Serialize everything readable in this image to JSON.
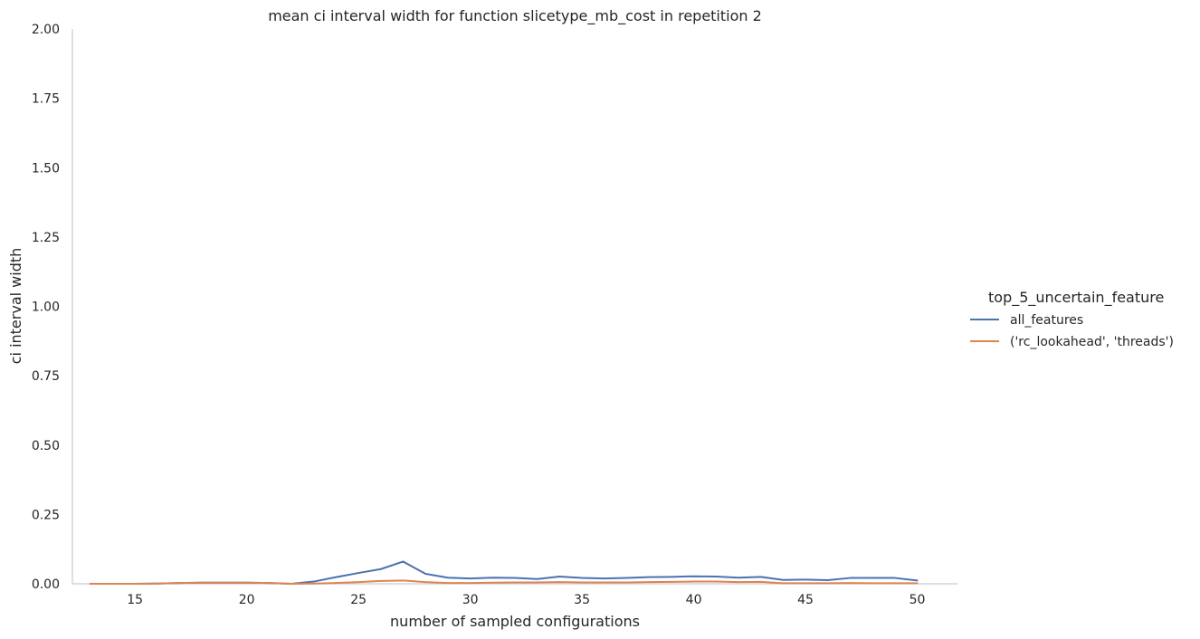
{
  "chart_data": {
    "type": "line",
    "title": "mean ci interval width for function slicetype_mb_cost in repetition 2",
    "xlabel": "number of sampled configurations",
    "ylabel": "ci interval width",
    "xlim": [
      12.2,
      51.8
    ],
    "ylim": [
      0,
      2.0
    ],
    "xticks": [
      15,
      20,
      25,
      30,
      35,
      40,
      45,
      50
    ],
    "yticks": [
      0.0,
      0.25,
      0.5,
      0.75,
      1.0,
      1.25,
      1.5,
      1.75,
      2.0
    ],
    "xtick_labels": [
      "15",
      "20",
      "25",
      "30",
      "35",
      "40",
      "45",
      "50"
    ],
    "ytick_labels": [
      "0.00",
      "0.25",
      "0.50",
      "0.75",
      "1.00",
      "1.25",
      "1.50",
      "1.75",
      "2.00"
    ],
    "grid": false,
    "legend": {
      "title": "top_5_uncertain_feature",
      "placement": "right"
    },
    "x": [
      13,
      14,
      15,
      16,
      17,
      18,
      19,
      20,
      21,
      22,
      23,
      24,
      25,
      26,
      27,
      28,
      29,
      30,
      31,
      32,
      33,
      34,
      35,
      36,
      37,
      38,
      39,
      40,
      41,
      42,
      43,
      44,
      45,
      46,
      47,
      48,
      49,
      50
    ],
    "series": [
      {
        "name": "all_features",
        "color": "#4c72b0",
        "values": [
          0.0,
          0.0,
          0.0,
          0.001,
          0.003,
          0.004,
          0.004,
          0.004,
          0.003,
          0.0,
          0.008,
          0.024,
          0.039,
          0.053,
          0.08,
          0.036,
          0.022,
          0.019,
          0.022,
          0.021,
          0.017,
          0.026,
          0.021,
          0.019,
          0.021,
          0.024,
          0.025,
          0.027,
          0.026,
          0.022,
          0.025,
          0.014,
          0.015,
          0.013,
          0.021,
          0.021,
          0.021,
          0.012
        ]
      },
      {
        "name": "('rc_lookahead', 'threads')",
        "color": "#dd8452",
        "values": [
          0.0,
          0.0,
          0.0,
          0.001,
          0.003,
          0.004,
          0.004,
          0.004,
          0.003,
          0.0,
          0.001,
          0.003,
          0.006,
          0.01,
          0.012,
          0.006,
          0.003,
          0.003,
          0.004,
          0.005,
          0.005,
          0.006,
          0.005,
          0.005,
          0.005,
          0.006,
          0.007,
          0.008,
          0.008,
          0.006,
          0.007,
          0.002,
          0.002,
          0.002,
          0.003,
          0.002,
          0.002,
          0.002
        ]
      }
    ]
  }
}
